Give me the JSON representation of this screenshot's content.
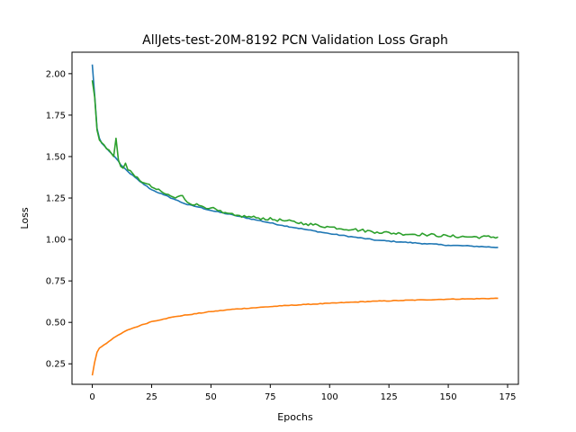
{
  "chart_data": {
    "type": "line",
    "title": "AllJets-test-20M-8192 PCN Validation Loss Graph",
    "xlabel": "Epochs",
    "ylabel": "Loss",
    "xlim": [
      -8.55,
      179.55
    ],
    "ylim": [
      0.1265,
      2.1295
    ],
    "xticks": [
      0,
      25,
      50,
      75,
      100,
      125,
      150,
      175
    ],
    "yticks": [
      0.25,
      0.5,
      0.75,
      1.0,
      1.25,
      1.5,
      1.75,
      2.0
    ],
    "ytick_labels": [
      "0.25",
      "0.50",
      "0.75",
      "1.00",
      "1.25",
      "1.50",
      "1.75",
      "2.00"
    ],
    "grid": false,
    "legend": "none",
    "x": {
      "start": 0,
      "end": 171,
      "step": 1
    },
    "series": [
      {
        "color": "#1f77b4",
        "anchors": [
          [
            0,
            2.055
          ],
          [
            1,
            1.87
          ],
          [
            2,
            1.67
          ],
          [
            3,
            1.61
          ],
          [
            4,
            1.58
          ],
          [
            6,
            1.55
          ],
          [
            8,
            1.52
          ],
          [
            10,
            1.49
          ],
          [
            12,
            1.45
          ],
          [
            15,
            1.41
          ],
          [
            20,
            1.35
          ],
          [
            25,
            1.3
          ],
          [
            30,
            1.27
          ],
          [
            35,
            1.24
          ],
          [
            40,
            1.21
          ],
          [
            45,
            1.195
          ],
          [
            50,
            1.175
          ],
          [
            60,
            1.145
          ],
          [
            70,
            1.115
          ],
          [
            80,
            1.085
          ],
          [
            90,
            1.06
          ],
          [
            100,
            1.035
          ],
          [
            110,
            1.015
          ],
          [
            120,
            0.995
          ],
          [
            130,
            0.985
          ],
          [
            140,
            0.975
          ],
          [
            150,
            0.965
          ],
          [
            160,
            0.96
          ],
          [
            171,
            0.952
          ]
        ],
        "noise": 0.003
      },
      {
        "color": "#ff7f0e",
        "anchors": [
          [
            0,
            0.18
          ],
          [
            1,
            0.26
          ],
          [
            2,
            0.32
          ],
          [
            3,
            0.345
          ],
          [
            5,
            0.365
          ],
          [
            8,
            0.395
          ],
          [
            10,
            0.415
          ],
          [
            15,
            0.455
          ],
          [
            20,
            0.48
          ],
          [
            25,
            0.505
          ],
          [
            30,
            0.52
          ],
          [
            35,
            0.535
          ],
          [
            40,
            0.545
          ],
          [
            50,
            0.565
          ],
          [
            60,
            0.58
          ],
          [
            70,
            0.59
          ],
          [
            80,
            0.6
          ],
          [
            90,
            0.608
          ],
          [
            100,
            0.615
          ],
          [
            110,
            0.622
          ],
          [
            120,
            0.628
          ],
          [
            130,
            0.632
          ],
          [
            140,
            0.636
          ],
          [
            150,
            0.64
          ],
          [
            160,
            0.642
          ],
          [
            171,
            0.645
          ]
        ],
        "noise": 0.002
      },
      {
        "color": "#2ca02c",
        "anchors": [
          [
            0,
            1.96
          ],
          [
            1,
            1.86
          ],
          [
            2,
            1.66
          ],
          [
            3,
            1.6
          ],
          [
            5,
            1.57
          ],
          [
            7,
            1.54
          ],
          [
            8,
            1.52
          ],
          [
            9,
            1.5
          ],
          [
            10,
            1.61
          ],
          [
            11,
            1.48
          ],
          [
            12,
            1.44
          ],
          [
            13,
            1.43
          ],
          [
            14,
            1.46
          ],
          [
            15,
            1.42
          ],
          [
            18,
            1.38
          ],
          [
            22,
            1.34
          ],
          [
            26,
            1.31
          ],
          [
            30,
            1.28
          ],
          [
            35,
            1.25
          ],
          [
            38,
            1.265
          ],
          [
            40,
            1.225
          ],
          [
            45,
            1.205
          ],
          [
            50,
            1.19
          ],
          [
            55,
            1.16
          ],
          [
            60,
            1.145
          ],
          [
            70,
            1.13
          ],
          [
            80,
            1.115
          ],
          [
            90,
            1.095
          ],
          [
            100,
            1.075
          ],
          [
            110,
            1.06
          ],
          [
            120,
            1.045
          ],
          [
            130,
            1.035
          ],
          [
            140,
            1.03
          ],
          [
            150,
            1.02
          ],
          [
            160,
            1.015
          ],
          [
            171,
            1.015
          ]
        ],
        "noise": 0.009
      }
    ]
  }
}
